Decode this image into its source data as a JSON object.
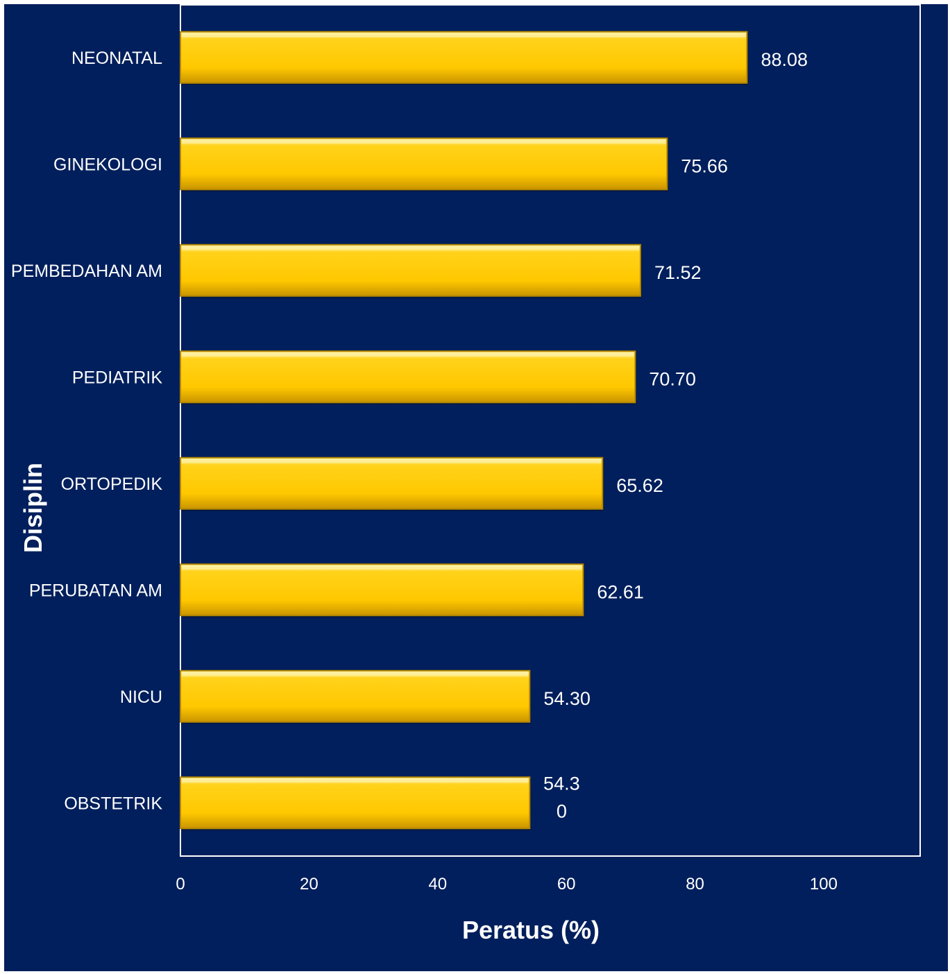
{
  "chart_data": {
    "type": "bar",
    "orientation": "horizontal",
    "categories": [
      "NEONATAL",
      "GINEKOLOGI",
      "PEMBEDAHAN AM",
      "PEDIATRIK",
      "ORTOPEDIK",
      "PERUBATAN AM",
      "NICU",
      "OBSTETRIK"
    ],
    "values": [
      88.08,
      75.66,
      71.52,
      70.7,
      65.62,
      62.61,
      54.3,
      54.3
    ],
    "data_labels": [
      "88.08",
      "75.66",
      "71.52",
      "70.70",
      "65.62",
      "62.61",
      "54.30",
      "54.3\n0"
    ],
    "xlabel": "Peratus (%)",
    "ylabel": "Disiplin",
    "xlim": [
      0,
      115
    ],
    "xticks": [
      0,
      20,
      40,
      60,
      80,
      100
    ],
    "grid": false,
    "colors": {
      "background": "#001f5c",
      "bar": "#ffcc00",
      "bar_edge": "#b38600",
      "text": "#ffffff",
      "axis": "#ffffff"
    }
  }
}
